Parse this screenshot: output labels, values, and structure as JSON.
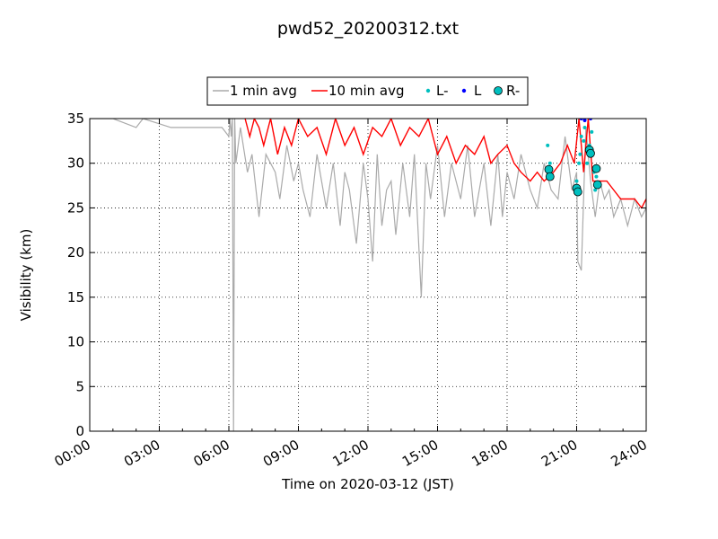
{
  "chart_data": {
    "type": "line",
    "title": "pwd52_20200312.txt",
    "xlabel": "Time on 2020-03-12 (JST)",
    "ylabel": "Visibility (km)",
    "x_unit": "hours",
    "xlim": [
      0,
      24
    ],
    "ylim": [
      0,
      35
    ],
    "x_ticks": [
      0,
      3,
      6,
      9,
      12,
      15,
      18,
      21,
      24
    ],
    "x_tick_labels": [
      "00:00",
      "03:00",
      "06:00",
      "09:00",
      "12:00",
      "15:00",
      "18:00",
      "21:00",
      "24:00"
    ],
    "y_ticks": [
      0,
      5,
      10,
      15,
      20,
      25,
      30,
      35
    ],
    "y_tick_labels": [
      "0",
      "5",
      "10",
      "15",
      "20",
      "25",
      "30",
      "35"
    ],
    "grid": true,
    "legend_position": "top-center",
    "series": [
      {
        "name": "1 min avg",
        "style": "line",
        "color": "#aaaaaa",
        "x": [
          0,
          1.0,
          2.0,
          2.3,
          3.5,
          4.8,
          5.3,
          5.7,
          6.0,
          6.05,
          6.1,
          6.15,
          6.2,
          6.25,
          6.3,
          6.5,
          6.8,
          7.0,
          7.3,
          7.6,
          8.0,
          8.2,
          8.5,
          8.8,
          9.0,
          9.2,
          9.5,
          9.8,
          10.0,
          10.2,
          10.5,
          10.8,
          11.0,
          11.2,
          11.5,
          11.8,
          12.0,
          12.2,
          12.4,
          12.6,
          12.8,
          13.0,
          13.2,
          13.5,
          13.8,
          14.0,
          14.3,
          14.5,
          14.7,
          15.0,
          15.3,
          15.6,
          16.0,
          16.3,
          16.6,
          17.0,
          17.3,
          17.6,
          17.8,
          18.0,
          18.3,
          18.6,
          19.0,
          19.3,
          19.6,
          19.9,
          20.2,
          20.5,
          20.8,
          21.0,
          21.05,
          21.2,
          21.4,
          21.6,
          21.8,
          22.0,
          22.2,
          22.4,
          22.6,
          22.9,
          23.2,
          23.5,
          23.8,
          24.0
        ],
        "y": [
          35,
          35,
          34,
          35,
          34,
          34,
          34,
          34,
          33,
          35,
          33,
          35,
          0,
          35,
          30,
          34,
          29,
          31,
          24,
          31,
          29,
          26,
          32,
          28,
          30,
          27,
          24,
          31,
          28,
          25,
          30,
          23,
          29,
          27,
          21,
          30,
          26,
          19,
          31,
          23,
          27,
          28,
          22,
          30,
          24,
          31,
          15,
          30,
          26,
          32,
          24,
          30,
          26,
          32,
          24,
          30,
          23,
          31,
          24,
          29,
          26,
          31,
          27,
          25,
          30,
          27,
          26,
          33,
          27,
          29,
          19,
          18,
          34,
          28,
          24,
          28,
          26,
          27,
          24,
          26,
          23,
          26,
          24,
          25
        ]
      },
      {
        "name": "10 min avg",
        "style": "line",
        "color": "#ff0000",
        "x": [
          6.7,
          6.9,
          7.1,
          7.3,
          7.5,
          7.8,
          8.1,
          8.4,
          8.7,
          9.0,
          9.4,
          9.8,
          10.2,
          10.6,
          11.0,
          11.4,
          11.8,
          12.2,
          12.6,
          13.0,
          13.4,
          13.8,
          14.2,
          14.6,
          15.0,
          15.4,
          15.8,
          16.2,
          16.6,
          17.0,
          17.3,
          17.6,
          18.0,
          18.3,
          18.6,
          19.0,
          19.3,
          19.6,
          20.0,
          20.3,
          20.6,
          20.9,
          21.1,
          21.3,
          21.5,
          21.7,
          22.0,
          22.3,
          22.6,
          22.9,
          23.2,
          23.5,
          23.8,
          24.0
        ],
        "y": [
          35,
          33,
          35,
          34,
          32,
          35,
          31,
          34,
          32,
          35,
          33,
          34,
          31,
          35,
          32,
          34,
          31,
          34,
          33,
          35,
          32,
          34,
          33,
          35,
          31,
          33,
          30,
          32,
          31,
          33,
          30,
          31,
          32,
          30,
          29,
          28,
          29,
          28,
          29,
          30,
          32,
          30,
          35,
          29,
          35,
          28,
          28,
          28,
          27,
          26,
          26,
          26,
          25,
          26
        ]
      },
      {
        "name": "L-",
        "style": "points",
        "color": "#00bfbf",
        "x": [
          19.75,
          19.85,
          21.0,
          21.05,
          21.1,
          21.15,
          21.2,
          21.3,
          21.35,
          21.45,
          21.55,
          21.65,
          21.75,
          21.8,
          21.85
        ],
        "y": [
          32,
          30,
          28,
          26.5,
          30,
          31,
          33,
          32.5,
          34,
          30,
          32,
          33.5,
          29,
          27,
          28.5
        ]
      },
      {
        "name": "L",
        "style": "points",
        "color": "#0000ff",
        "x": [
          21.2,
          21.35,
          21.6
        ],
        "y": [
          35,
          34.8,
          35
        ]
      },
      {
        "name": "R-",
        "style": "markers",
        "color": "#00bfbf",
        "x": [
          19.8,
          19.85,
          21.0,
          21.05,
          21.55,
          21.6,
          21.85,
          21.9
        ],
        "y": [
          29.3,
          28.5,
          27.2,
          26.8,
          31.5,
          31.1,
          29.4,
          27.6
        ]
      }
    ]
  }
}
